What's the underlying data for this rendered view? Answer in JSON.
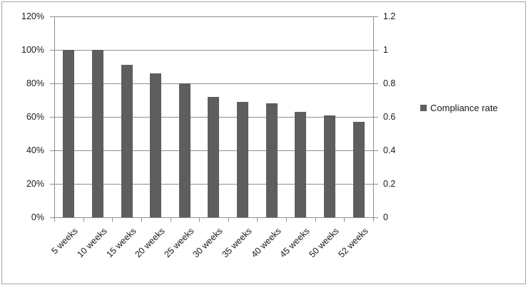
{
  "chart_data": {
    "type": "bar",
    "title": "",
    "categories": [
      "5 weeks",
      "10 weeks",
      "15 weeks",
      "20 weeks",
      "25 weeks",
      "30 weeks",
      "35 weeks",
      "40 weeks",
      "45 weeks",
      "50 weeks",
      "52 weeks"
    ],
    "series": [
      {
        "name": "Compliance rate",
        "values": [
          1.0,
          1.0,
          0.91,
          0.86,
          0.8,
          0.72,
          0.69,
          0.68,
          0.63,
          0.61,
          0.57
        ]
      }
    ],
    "left_axis": {
      "ticks": [
        "0%",
        "20%",
        "40%",
        "60%",
        "80%",
        "100%",
        "120%"
      ],
      "min": 0,
      "max": 1.2
    },
    "right_axis": {
      "ticks": [
        "0",
        "0.2",
        "0.4",
        "0.6",
        "0.8",
        "1",
        "1.2"
      ],
      "min": 0,
      "max": 1.2
    },
    "legend": {
      "position": "right",
      "entries": [
        "Compliance rate"
      ]
    },
    "grid": true,
    "colors": {
      "bar": "#5e5e5e",
      "gridline": "#8f8f8f",
      "border": "#a6a6a6",
      "text": "#1a1a1a"
    }
  }
}
